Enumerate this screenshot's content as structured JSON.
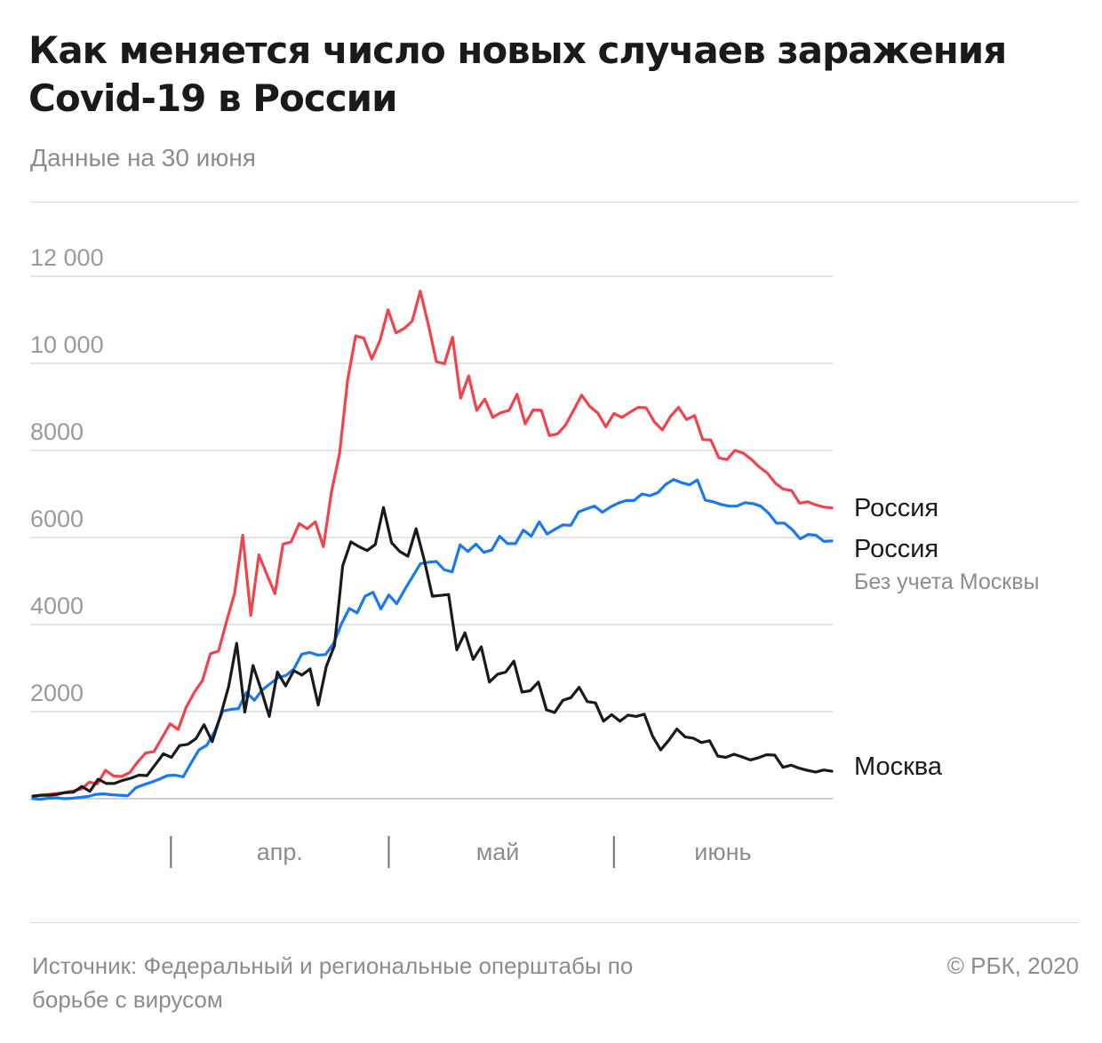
{
  "title": "Как меняется число новых случаев заражения Covid-19 в России",
  "subtitle": "Данные на 30 июня",
  "source": "Источник: Федеральный и региональные оперштабы по борьбе с вирусом",
  "copyright": "© РБК, 2020",
  "chart_data": {
    "type": "line",
    "x_start": "2020-03-12",
    "x_end": "2020-06-30",
    "yticks": [
      2000,
      4000,
      6000,
      8000,
      10000,
      12000
    ],
    "ytick_labels": [
      "2000",
      "4000",
      "6000",
      "8000",
      "10 000",
      "12 000"
    ],
    "ylim": [
      0,
      12000
    ],
    "grid": true,
    "xtick_labels": [
      {
        "label": "апр.",
        "date": "2020-04-15"
      },
      {
        "label": "май",
        "date": "2020-05-15"
      },
      {
        "label": "июнь",
        "date": "2020-06-15"
      }
    ],
    "xtick_separators": [
      "2020-03-31",
      "2020-04-30",
      "2020-05-31"
    ],
    "series": [
      {
        "name": "Россия",
        "color": "#f2424b",
        "values": [
          60,
          80,
          100,
          120,
          140,
          180,
          220,
          380,
          340,
          650,
          520,
          510,
          600,
          850,
          1050,
          1080,
          1400,
          1720,
          1590,
          2100,
          2440,
          2710,
          3330,
          3390,
          4070,
          4720,
          6050,
          4210,
          5600,
          5150,
          4710,
          5850,
          5900,
          6320,
          6200,
          6360,
          5790,
          7050,
          7930,
          9620,
          10630,
          10580,
          10100,
          10520,
          11230,
          10700,
          10800,
          10970,
          11660,
          10890,
          10040,
          9990,
          10600,
          9200,
          9710,
          8920,
          9180,
          8760,
          8870,
          8920,
          9290,
          8610,
          8930,
          8920,
          8340,
          8380,
          8580,
          8920,
          9270,
          9010,
          8860,
          8540,
          8850,
          8760,
          8880,
          8990,
          8980,
          8660,
          8470,
          8780,
          8990,
          8710,
          8800,
          8250,
          8240,
          7830,
          7790,
          8000,
          7940,
          7800,
          7620,
          7480,
          7250,
          7110,
          7080,
          6790,
          6820,
          6750,
          6700,
          6680
        ],
        "label_lines": [
          "Россия"
        ]
      },
      {
        "name": "Россия",
        "color": "#1a78f0",
        "values": [
          0,
          -10,
          10,
          20,
          0,
          10,
          30,
          50,
          100,
          110,
          90,
          80,
          70,
          250,
          320,
          380,
          450,
          530,
          540,
          500,
          820,
          1120,
          1230,
          1550,
          2010,
          2050,
          2070,
          2440,
          2260,
          2500,
          2640,
          2780,
          2830,
          2980,
          3320,
          3360,
          3300,
          3310,
          3560,
          4010,
          4370,
          4270,
          4650,
          4740,
          4360,
          4680,
          4480,
          4800,
          5100,
          5400,
          5430,
          5450,
          5260,
          5210,
          5830,
          5680,
          5850,
          5660,
          5710,
          6030,
          5860,
          5860,
          6170,
          6030,
          6360,
          6080,
          6190,
          6290,
          6280,
          6590,
          6660,
          6720,
          6580,
          6700,
          6790,
          6850,
          6850,
          7000,
          6960,
          7030,
          7220,
          7330,
          7260,
          7210,
          7320,
          6860,
          6820,
          6760,
          6720,
          6720,
          6800,
          6780,
          6720,
          6560,
          6330,
          6330,
          6180,
          5970,
          6070,
          6050,
          5910,
          5920
        ],
        "label_lines": [
          "Россия",
          "Без учета Москвы"
        ]
      },
      {
        "name": "Москва",
        "color": "#1a1a1a",
        "values": [
          60,
          80,
          80,
          100,
          140,
          150,
          280,
          170,
          450,
          350,
          350,
          420,
          470,
          540,
          530,
          780,
          1030,
          950,
          1220,
          1250,
          1380,
          1700,
          1310,
          1900,
          2570,
          3570,
          1990,
          3060,
          2500,
          1890,
          2910,
          2590,
          2940,
          2840,
          2980,
          2150,
          3040,
          3520,
          5350,
          5900,
          5790,
          5700,
          5840,
          6690,
          5880,
          5680,
          5570,
          6200,
          5490,
          4650,
          4670,
          4690,
          3420,
          3810,
          3200,
          3490,
          2680,
          2860,
          2910,
          3160,
          2450,
          2480,
          2680,
          2040,
          1980,
          2260,
          2320,
          2560,
          2230,
          2200,
          1780,
          1930,
          1780,
          1920,
          1890,
          1940,
          1440,
          1120,
          1340,
          1600,
          1420,
          1390,
          1290,
          1330,
          980,
          950,
          1020,
          960,
          890,
          940,
          1010,
          1000,
          720,
          770,
          700,
          650,
          610,
          660,
          630
        ],
        "label_lines": [
          "Москва"
        ]
      }
    ]
  }
}
